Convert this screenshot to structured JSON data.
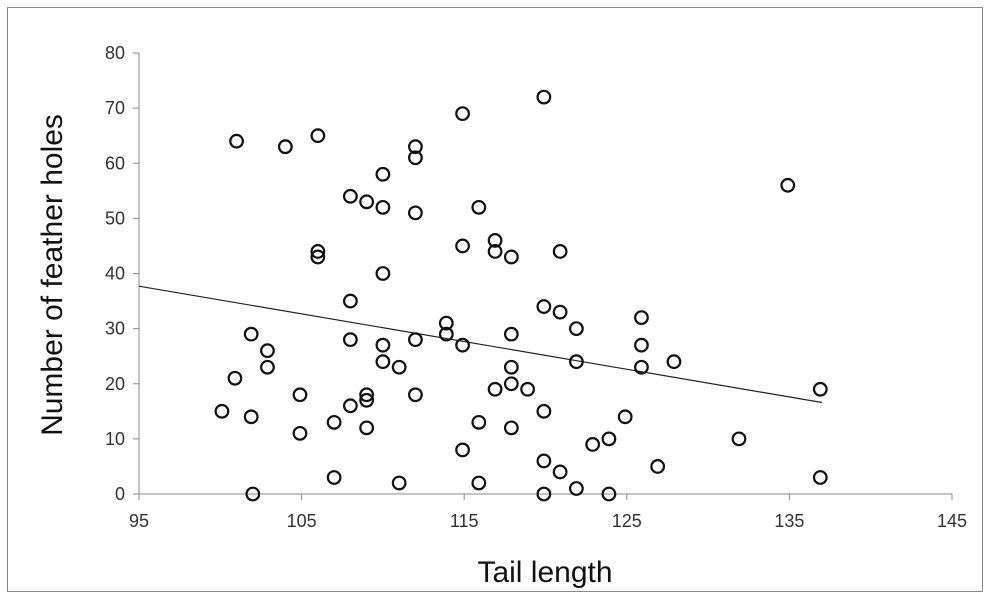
{
  "chart_data": {
    "type": "scatter",
    "title": "",
    "xlabel": "Tail length",
    "ylabel": "Number of feather holes",
    "xlim": [
      95,
      145
    ],
    "ylim": [
      0,
      80
    ],
    "x_ticks": [
      95,
      105,
      115,
      125,
      135,
      145
    ],
    "y_ticks": [
      0,
      10,
      20,
      30,
      40,
      50,
      60,
      70,
      80
    ],
    "grid": false,
    "legend": "none",
    "marker": "open-circle",
    "colors": {
      "marker": "#111111",
      "trendline": "#222222",
      "axis": "#8a8a8a"
    },
    "trendline": {
      "type": "linear",
      "x": [
        95,
        137
      ],
      "y": [
        37.7,
        16.6
      ]
    },
    "points": [
      [
        100.1,
        15
      ],
      [
        100.9,
        21
      ],
      [
        101.0,
        64
      ],
      [
        101.9,
        29
      ],
      [
        101.9,
        14
      ],
      [
        102.0,
        0
      ],
      [
        102.9,
        26
      ],
      [
        102.9,
        23
      ],
      [
        104.0,
        63
      ],
      [
        104.9,
        18
      ],
      [
        104.9,
        11
      ],
      [
        106.0,
        65
      ],
      [
        106.0,
        44
      ],
      [
        106.0,
        43
      ],
      [
        107.0,
        13
      ],
      [
        107.0,
        3
      ],
      [
        108.0,
        54
      ],
      [
        108.0,
        35
      ],
      [
        108.0,
        28
      ],
      [
        108.0,
        16
      ],
      [
        109.0,
        53
      ],
      [
        109.0,
        18
      ],
      [
        109.0,
        17
      ],
      [
        109.0,
        12
      ],
      [
        110.0,
        58
      ],
      [
        110.0,
        52
      ],
      [
        110.0,
        40
      ],
      [
        110.0,
        27
      ],
      [
        110.0,
        24
      ],
      [
        111.0,
        23
      ],
      [
        111.0,
        2
      ],
      [
        112.0,
        63
      ],
      [
        112.0,
        61
      ],
      [
        112.0,
        51
      ],
      [
        112.0,
        28
      ],
      [
        112.0,
        18
      ],
      [
        113.9,
        31
      ],
      [
        113.9,
        29
      ],
      [
        114.9,
        69
      ],
      [
        114.9,
        45
      ],
      [
        114.9,
        27
      ],
      [
        114.9,
        8
      ],
      [
        115.9,
        52
      ],
      [
        115.9,
        13
      ],
      [
        115.9,
        2
      ],
      [
        116.9,
        46
      ],
      [
        116.9,
        44
      ],
      [
        116.9,
        19
      ],
      [
        117.9,
        43
      ],
      [
        117.9,
        29
      ],
      [
        117.9,
        23
      ],
      [
        117.9,
        20
      ],
      [
        117.9,
        12
      ],
      [
        118.9,
        19
      ],
      [
        119.9,
        72
      ],
      [
        119.9,
        34
      ],
      [
        119.9,
        15
      ],
      [
        119.9,
        6
      ],
      [
        119.9,
        0
      ],
      [
        120.9,
        44
      ],
      [
        120.9,
        33
      ],
      [
        120.9,
        4
      ],
      [
        121.9,
        30
      ],
      [
        121.9,
        24
      ],
      [
        121.9,
        1
      ],
      [
        122.9,
        9
      ],
      [
        123.9,
        10
      ],
      [
        123.9,
        0
      ],
      [
        124.9,
        14
      ],
      [
        125.9,
        32
      ],
      [
        125.9,
        27
      ],
      [
        125.9,
        23
      ],
      [
        126.9,
        5
      ],
      [
        127.9,
        24
      ],
      [
        131.9,
        10
      ],
      [
        134.9,
        56
      ],
      [
        136.9,
        19
      ],
      [
        136.9,
        3
      ]
    ]
  }
}
